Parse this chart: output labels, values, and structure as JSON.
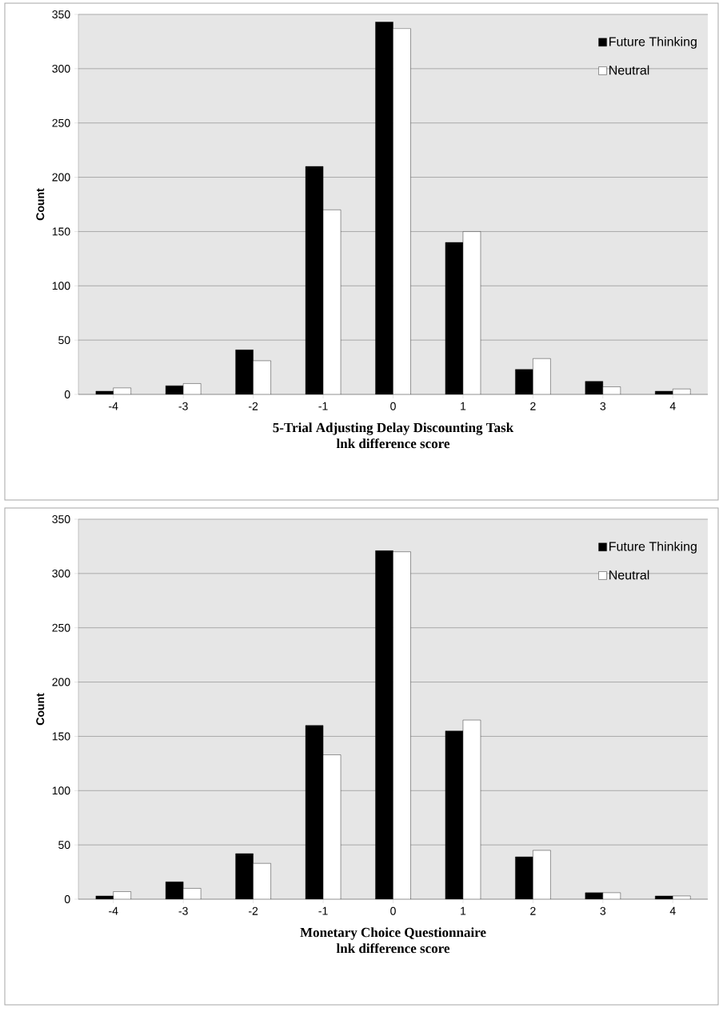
{
  "chart_data": [
    {
      "type": "bar",
      "xlabel": "5-Trial Adjusting Delay Discounting Task\nlnk difference score",
      "ylabel": "Count",
      "categories": [
        "-4",
        "-3",
        "-2",
        "-1",
        "0",
        "1",
        "2",
        "3",
        "4"
      ],
      "series": [
        {
          "name": "Future Thinking",
          "color": "#000000",
          "values": [
            3,
            8,
            41,
            210,
            343,
            140,
            23,
            12,
            3
          ]
        },
        {
          "name": "Neutral",
          "color": "#ffffff",
          "values": [
            6,
            10,
            31,
            170,
            337,
            150,
            33,
            7,
            5
          ]
        }
      ],
      "ylim": [
        0,
        350
      ],
      "yticks": [
        0,
        50,
        100,
        150,
        200,
        250,
        300,
        350
      ],
      "grid": "y",
      "legend": "top right"
    },
    {
      "type": "bar",
      "xlabel": "Monetary Choice Questionnaire\nlnk difference score",
      "ylabel": "Count",
      "categories": [
        "-4",
        "-3",
        "-2",
        "-1",
        "0",
        "1",
        "2",
        "3",
        "4"
      ],
      "series": [
        {
          "name": "Future Thinking",
          "color": "#000000",
          "values": [
            3,
            16,
            42,
            160,
            321,
            155,
            39,
            6,
            3
          ]
        },
        {
          "name": "Neutral",
          "color": "#ffffff",
          "values": [
            7,
            10,
            33,
            133,
            320,
            165,
            45,
            6,
            3
          ]
        }
      ],
      "ylim": [
        0,
        350
      ],
      "yticks": [
        0,
        50,
        100,
        150,
        200,
        250,
        300,
        350
      ],
      "grid": "y",
      "legend": "top right"
    }
  ]
}
